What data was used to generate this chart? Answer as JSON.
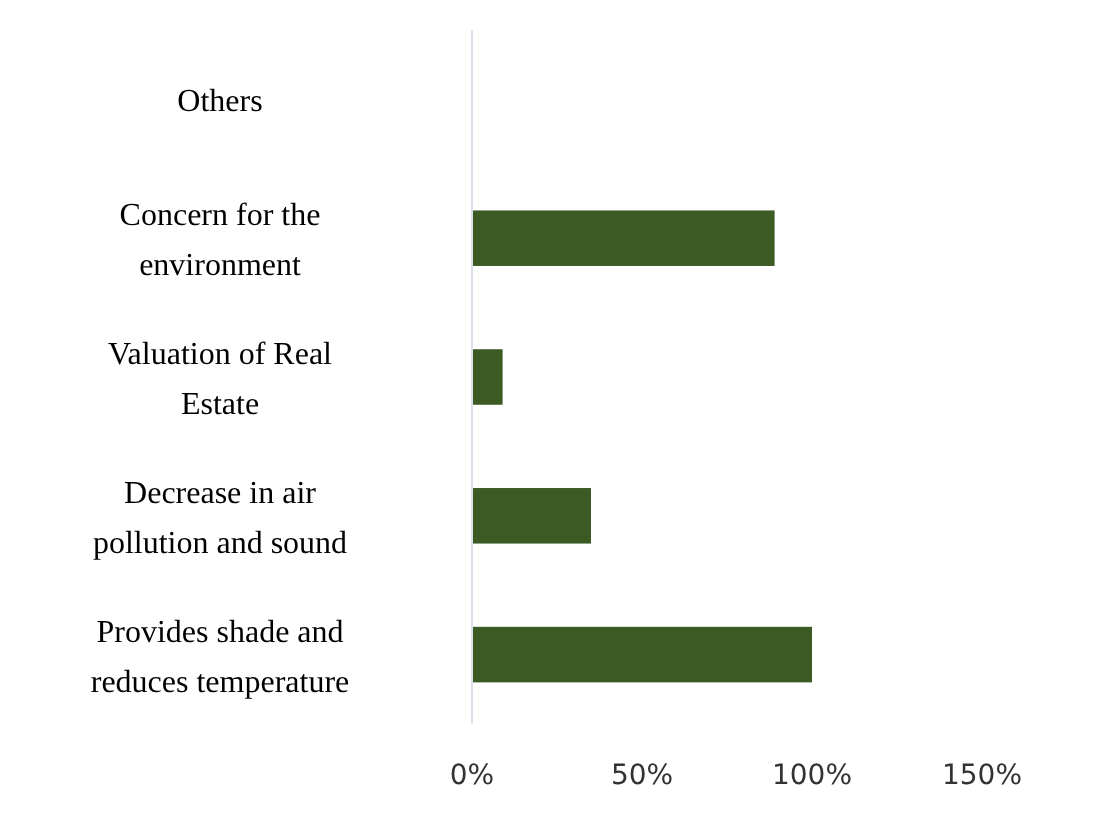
{
  "chart_data": {
    "type": "bar",
    "orientation": "horizontal",
    "categories": [
      "Others",
      "Concern for the environment",
      "Valuation of Real Estate",
      "Decrease in air pollution and sound",
      "Provides shade and reduces temperature"
    ],
    "values": [
      0,
      89,
      9,
      35,
      100
    ],
    "color": "#3c5a24",
    "xlim": [
      0,
      150
    ],
    "xticks": [
      {
        "value": 0,
        "label": "0%"
      },
      {
        "value": 50,
        "label": "50%"
      },
      {
        "value": 100,
        "label": "100%"
      },
      {
        "value": 150,
        "label": "150%"
      }
    ],
    "grid": false
  }
}
